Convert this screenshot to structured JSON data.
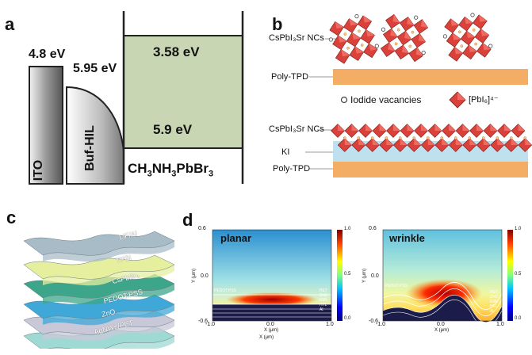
{
  "panels": {
    "a": {
      "label": "a",
      "ito_wf": "4.8 eV",
      "bufhil_wf": "5.95 eV",
      "cb": "3.58 eV",
      "vb": "5.9 eV",
      "ito": "ITO",
      "bufhil": "Buf-HIL",
      "perovskite_pre": "CH",
      "perovskite_s1": "3",
      "perovskite_mid": "NH",
      "perovskite_s2": "3",
      "perovskite_mid2": "PbBr",
      "perovskite_s3": "3"
    },
    "b": {
      "label": "b",
      "ncs_label": "CsPbI₃Sr NCs",
      "polytpd": "Poly-TPD",
      "iodide_vac": "Iodide vacancies",
      "pbi6": "[PbI₆]⁴⁻",
      "ncs_label2": "CsPbI₃Sr NCs",
      "ki": "KI",
      "polytpd2": "Poly-TPD"
    },
    "c": {
      "label": "c",
      "layers": [
        "LiF/Al",
        "TPBi",
        "CsPbBr₃",
        "PEDOT:PSS",
        "ZnO",
        "AgNWs/PET"
      ]
    },
    "d": {
      "label": "d",
      "planar": {
        "title": "planar",
        "ylabel": "Y (μm)",
        "xlabel": "X (μm)",
        "xlabel2": "X (μm)",
        "yticks": [
          "0.6",
          "0.0",
          "-0.6"
        ],
        "xticks": [
          "-1.0",
          "0.0",
          "1.0"
        ],
        "cbar": [
          "1.0",
          "0.5",
          "0.0"
        ],
        "layer_left": "PEDOT:PSS",
        "layer_right": [
          "PET",
          "ZnO",
          "EML",
          "HTL",
          "Al"
        ]
      },
      "wrinkle": {
        "title": "wrinkle",
        "ylabel": "Y (μm)",
        "xlabel": "X (μm)",
        "yticks": [
          "0.6",
          "0.0",
          "-0.6"
        ],
        "xticks": [
          "-1.0",
          "0.0",
          "1.0"
        ],
        "cbar": [
          "1.0",
          "0.5",
          "0.0"
        ],
        "layer_left": "PEDOT:PSS",
        "layer_right": [
          "PET",
          "ZnO",
          "EML",
          "HTL",
          "Al"
        ]
      }
    }
  },
  "colors": {
    "perovskite_fill": "#c9d6b4",
    "polytpd": "#f3ad65",
    "ki": "#bfe0ee",
    "octahedron": "#d9413a"
  }
}
